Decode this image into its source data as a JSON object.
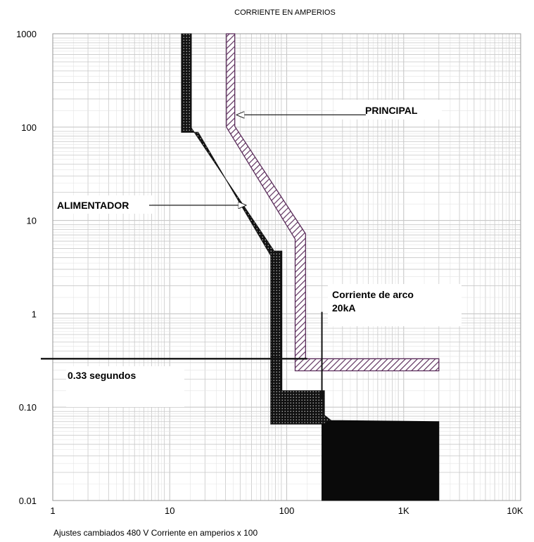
{
  "chart_data": {
    "type": "line",
    "title": "CORRIENTE EN AMPERIOS",
    "footer": "Ajustes cambiados  480 V  Corriente en amperios x 100",
    "x_scale": "log",
    "y_scale": "log",
    "xlim": [
      1,
      10000
    ],
    "ylim": [
      0.01,
      1000
    ],
    "x_ticks": [
      {
        "value": 1,
        "label": "1"
      },
      {
        "value": 10,
        "label": "10"
      },
      {
        "value": 100,
        "label": "100"
      },
      {
        "value": 1000,
        "label": "1K"
      },
      {
        "value": 10000,
        "label": "10K"
      }
    ],
    "y_ticks": [
      {
        "value": 1000,
        "label": "1000"
      },
      {
        "value": 100,
        "label": "100"
      },
      {
        "value": 10,
        "label": "10"
      },
      {
        "value": 1,
        "label": "1"
      },
      {
        "value": 0.1,
        "label": "0.10"
      },
      {
        "value": 0.01,
        "label": "0.01"
      }
    ],
    "grid": true,
    "series": [
      {
        "name": "ALIMENTADOR",
        "style": "solid-dotted-band",
        "color": "#111111",
        "band_polygon": [
          [
            12.6,
            1000
          ],
          [
            15.3,
            1000
          ],
          [
            15.3,
            98
          ],
          [
            78,
            4.7
          ],
          [
            91,
            4.7
          ],
          [
            91,
            0.15
          ],
          [
            210,
            0.15
          ],
          [
            210,
            0.082
          ],
          [
            240,
            0.072
          ],
          [
            2000,
            0.07
          ],
          [
            2000,
            0.01
          ],
          [
            200,
            0.01
          ],
          [
            200,
            0.066
          ],
          [
            73,
            0.066
          ],
          [
            73,
            4.2
          ],
          [
            17.5,
            88
          ],
          [
            12.6,
            88
          ]
        ]
      },
      {
        "name": "PRINCIPAL",
        "style": "hatched-band",
        "color": "#5a2c5a",
        "band_polygon": [
          [
            30.5,
            1000
          ],
          [
            36,
            1000
          ],
          [
            36,
            102
          ],
          [
            145,
            7.2
          ],
          [
            145,
            0.33
          ],
          [
            2000,
            0.33
          ],
          [
            2000,
            0.245
          ],
          [
            118,
            0.245
          ],
          [
            118,
            6.3
          ],
          [
            30.5,
            100
          ]
        ]
      }
    ],
    "reference_lines": [
      {
        "label": "0.33 segundos",
        "orientation": "horizontal",
        "value": 0.33,
        "x_from": 0.92,
        "x_to": 150
      },
      {
        "label": "Corriente de arco\n20kA",
        "orientation": "vertical",
        "value": 200,
        "y_from": 0.12,
        "y_to": 1.05
      }
    ],
    "annotations": [
      {
        "text": "PRINCIPAL",
        "arrow_to": [
          36,
          140
        ]
      },
      {
        "text": "ALIMENTADOR",
        "arrow_to": [
          46,
          17
        ]
      },
      {
        "text": "Corriente de arco",
        "line2": "20kA"
      },
      {
        "text": "0.33 segundos"
      }
    ],
    "colors": {
      "band_dark": "#111111",
      "hatch": "#5a2c5a",
      "grid": "#c8c8c8",
      "frame": "#9a9a9a"
    }
  }
}
